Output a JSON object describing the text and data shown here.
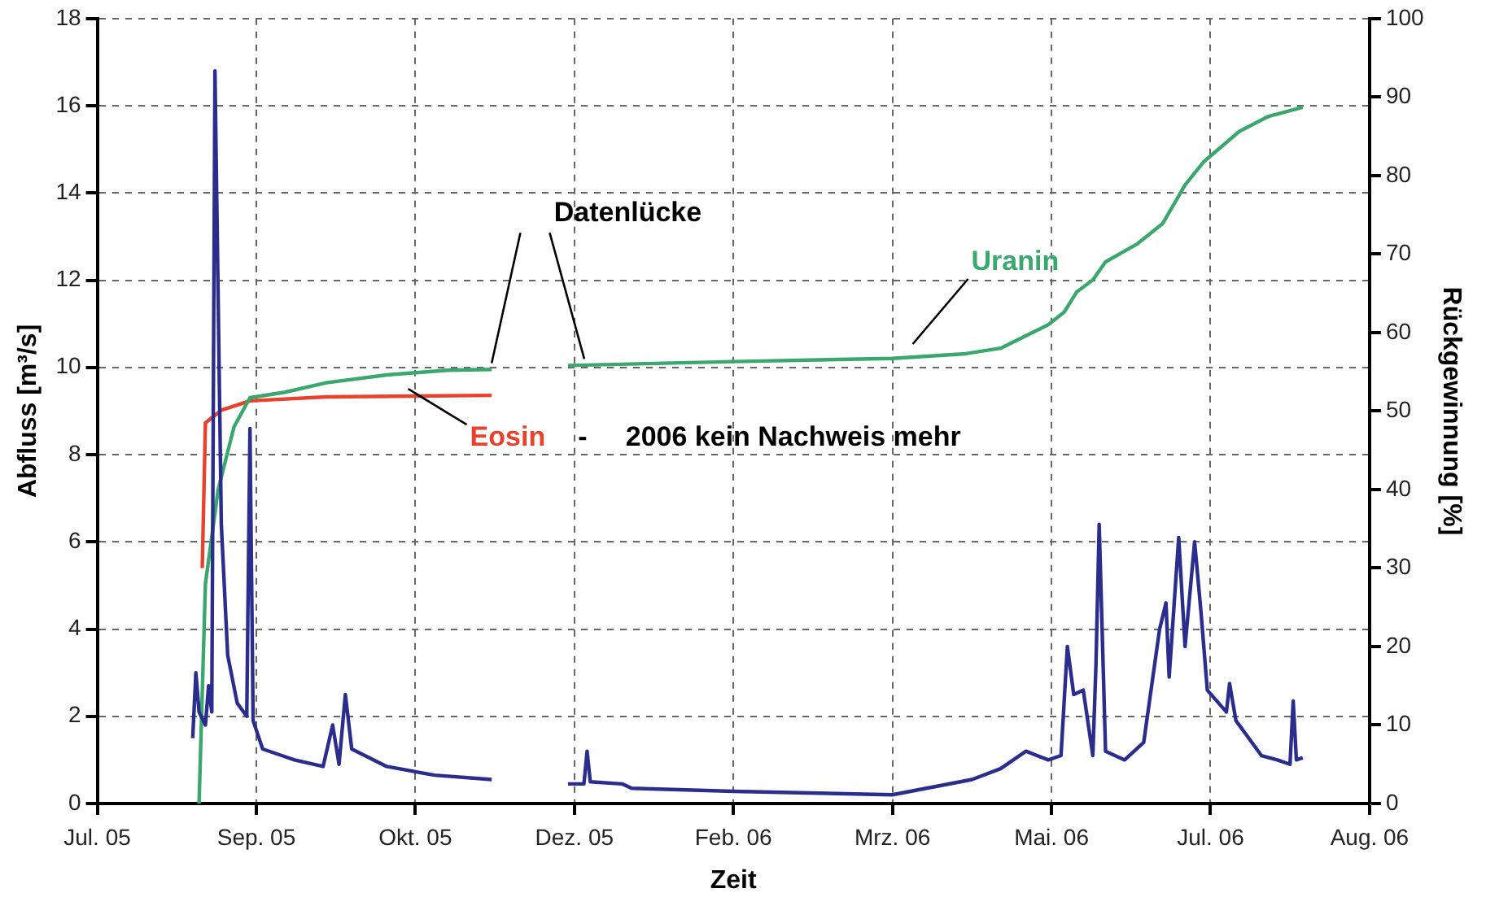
{
  "chart_data": {
    "type": "line",
    "xlabel": "Zeit",
    "ylabel": "Abfluss [m³/s]",
    "y2label": "Rückgewinnung [%]",
    "annotations": [
      {
        "text": "Datenlücke",
        "x": "2005-11-21",
        "y": 9.95
      },
      "- 2006 kein Nachweis mehr"
    ],
    "xlim": [
      "2005-07-20",
      "2006-08-24"
    ],
    "xticks": [
      {
        "value": "2005-07-20",
        "label": "Jul. 05"
      },
      {
        "value": "2005-09-08",
        "label": "Sep. 05"
      },
      {
        "value": "2005-10-28",
        "label": "Okt. 05"
      },
      {
        "value": "2005-12-17",
        "label": "Dez. 05"
      },
      {
        "value": "2006-02-05",
        "label": "Feb. 06"
      },
      {
        "value": "2006-03-27",
        "label": "Mrz. 06"
      },
      {
        "value": "2006-05-16",
        "label": "Mai. 06"
      },
      {
        "value": "2006-07-05",
        "label": "Jul. 06"
      },
      {
        "value": "2006-08-24",
        "label": "Aug. 06"
      }
    ],
    "ylim": [
      0,
      18
    ],
    "yticks": [
      0,
      2,
      4,
      6,
      8,
      10,
      12,
      14,
      16,
      18
    ],
    "y2lim": [
      0,
      100
    ],
    "y2ticks": [
      0,
      10,
      20,
      30,
      40,
      50,
      60,
      70,
      80,
      90,
      100
    ],
    "grid": true,
    "legend": false,
    "series": [
      {
        "color": "#2b2d8c",
        "x": [
          "2005-08-19",
          "2005-08-20",
          "2005-08-21",
          "2005-08-23",
          "2005-08-24",
          "2005-08-25",
          "2005-08-26",
          "2005-08-28",
          "2005-08-30",
          "2005-09-02",
          "2005-09-05",
          "2005-09-06",
          "2005-09-07",
          "2005-09-10",
          "2005-09-16",
          "2005-09-20",
          "2005-09-29",
          "2005-10-02",
          "2005-10-04",
          "2005-10-06",
          "2005-10-08",
          "2005-10-19",
          "2005-11-03",
          "2005-11-21",
          "2005-12-03",
          "2005-12-15",
          "2005-12-20",
          "2005-12-21",
          "2005-12-22",
          "2006-01-01",
          "2006-01-04",
          "2006-02-05",
          "2006-03-27",
          "2006-04-21",
          "2006-04-30",
          "2006-05-08",
          "2006-05-15",
          "2006-05-19",
          "2006-05-21",
          "2006-05-23",
          "2006-05-26",
          "2006-05-29",
          "2006-05-30",
          "2006-05-31",
          "2006-06-02",
          "2006-06-08",
          "2006-06-14",
          "2006-06-19",
          "2006-06-21",
          "2006-06-22",
          "2006-06-25",
          "2006-06-27",
          "2006-06-30",
          "2006-07-02",
          "2006-07-04",
          "2006-07-10",
          "2006-07-11",
          "2006-07-13",
          "2006-07-21",
          "2006-07-26",
          "2006-07-30",
          "2006-07-31",
          "2006-08-01",
          "2006-08-03"
        ],
        "values": [
          1.5,
          3.0,
          2.1,
          1.8,
          2.7,
          2.1,
          16.8,
          6.4,
          3.4,
          2.3,
          2.0,
          8.6,
          1.9,
          1.25,
          1.1,
          1.0,
          0.85,
          1.8,
          0.9,
          2.5,
          1.25,
          0.85,
          0.65,
          0.55,
          null,
          0.45,
          0.45,
          1.2,
          0.5,
          0.45,
          0.35,
          0.28,
          0.2,
          0.55,
          0.8,
          1.2,
          1.0,
          1.1,
          3.6,
          2.5,
          2.6,
          1.1,
          3.2,
          6.4,
          1.2,
          1.0,
          1.4,
          4.0,
          4.6,
          2.9,
          6.1,
          3.6,
          6.0,
          4.4,
          2.6,
          2.1,
          2.75,
          1.9,
          1.1,
          1.0,
          0.9,
          2.35,
          1.0,
          1.05
        ]
      },
      {
        "name": "Uranin",
        "color": "#3aa86e",
        "axis": "y2",
        "x": [
          "2005-08-21",
          "2005-08-23",
          "2005-08-27",
          "2005-09-01",
          "2005-09-06",
          "2005-09-17",
          "2005-09-30",
          "2005-10-19",
          "2005-11-07",
          "2005-11-21",
          "2005-12-03",
          "2005-12-15",
          "2006-02-05",
          "2006-03-27",
          "2006-04-19",
          "2006-04-30",
          "2006-05-15",
          "2006-05-20",
          "2006-05-24",
          "2006-05-29",
          "2006-06-02",
          "2006-06-12",
          "2006-06-20",
          "2006-06-27",
          "2006-07-03",
          "2006-07-14",
          "2006-07-23",
          "2006-08-03"
        ],
        "values": [
          0,
          28,
          40,
          48,
          51.7,
          52.4,
          53.6,
          54.6,
          55.2,
          55.3,
          null,
          55.8,
          56.3,
          56.7,
          57.3,
          58.0,
          61.0,
          62.6,
          65.2,
          66.7,
          69.0,
          71.3,
          73.9,
          78.8,
          81.8,
          85.6,
          87.5,
          88.7
        ]
      },
      {
        "name": "Eosin",
        "color": "#e8412c",
        "axis": "y2",
        "x": [
          "2005-08-22",
          "2005-08-23",
          "2005-08-28",
          "2005-09-06",
          "2005-09-30",
          "2005-11-21"
        ],
        "values": [
          30,
          48.5,
          50.1,
          51.3,
          51.8,
          52
        ]
      }
    ]
  }
}
